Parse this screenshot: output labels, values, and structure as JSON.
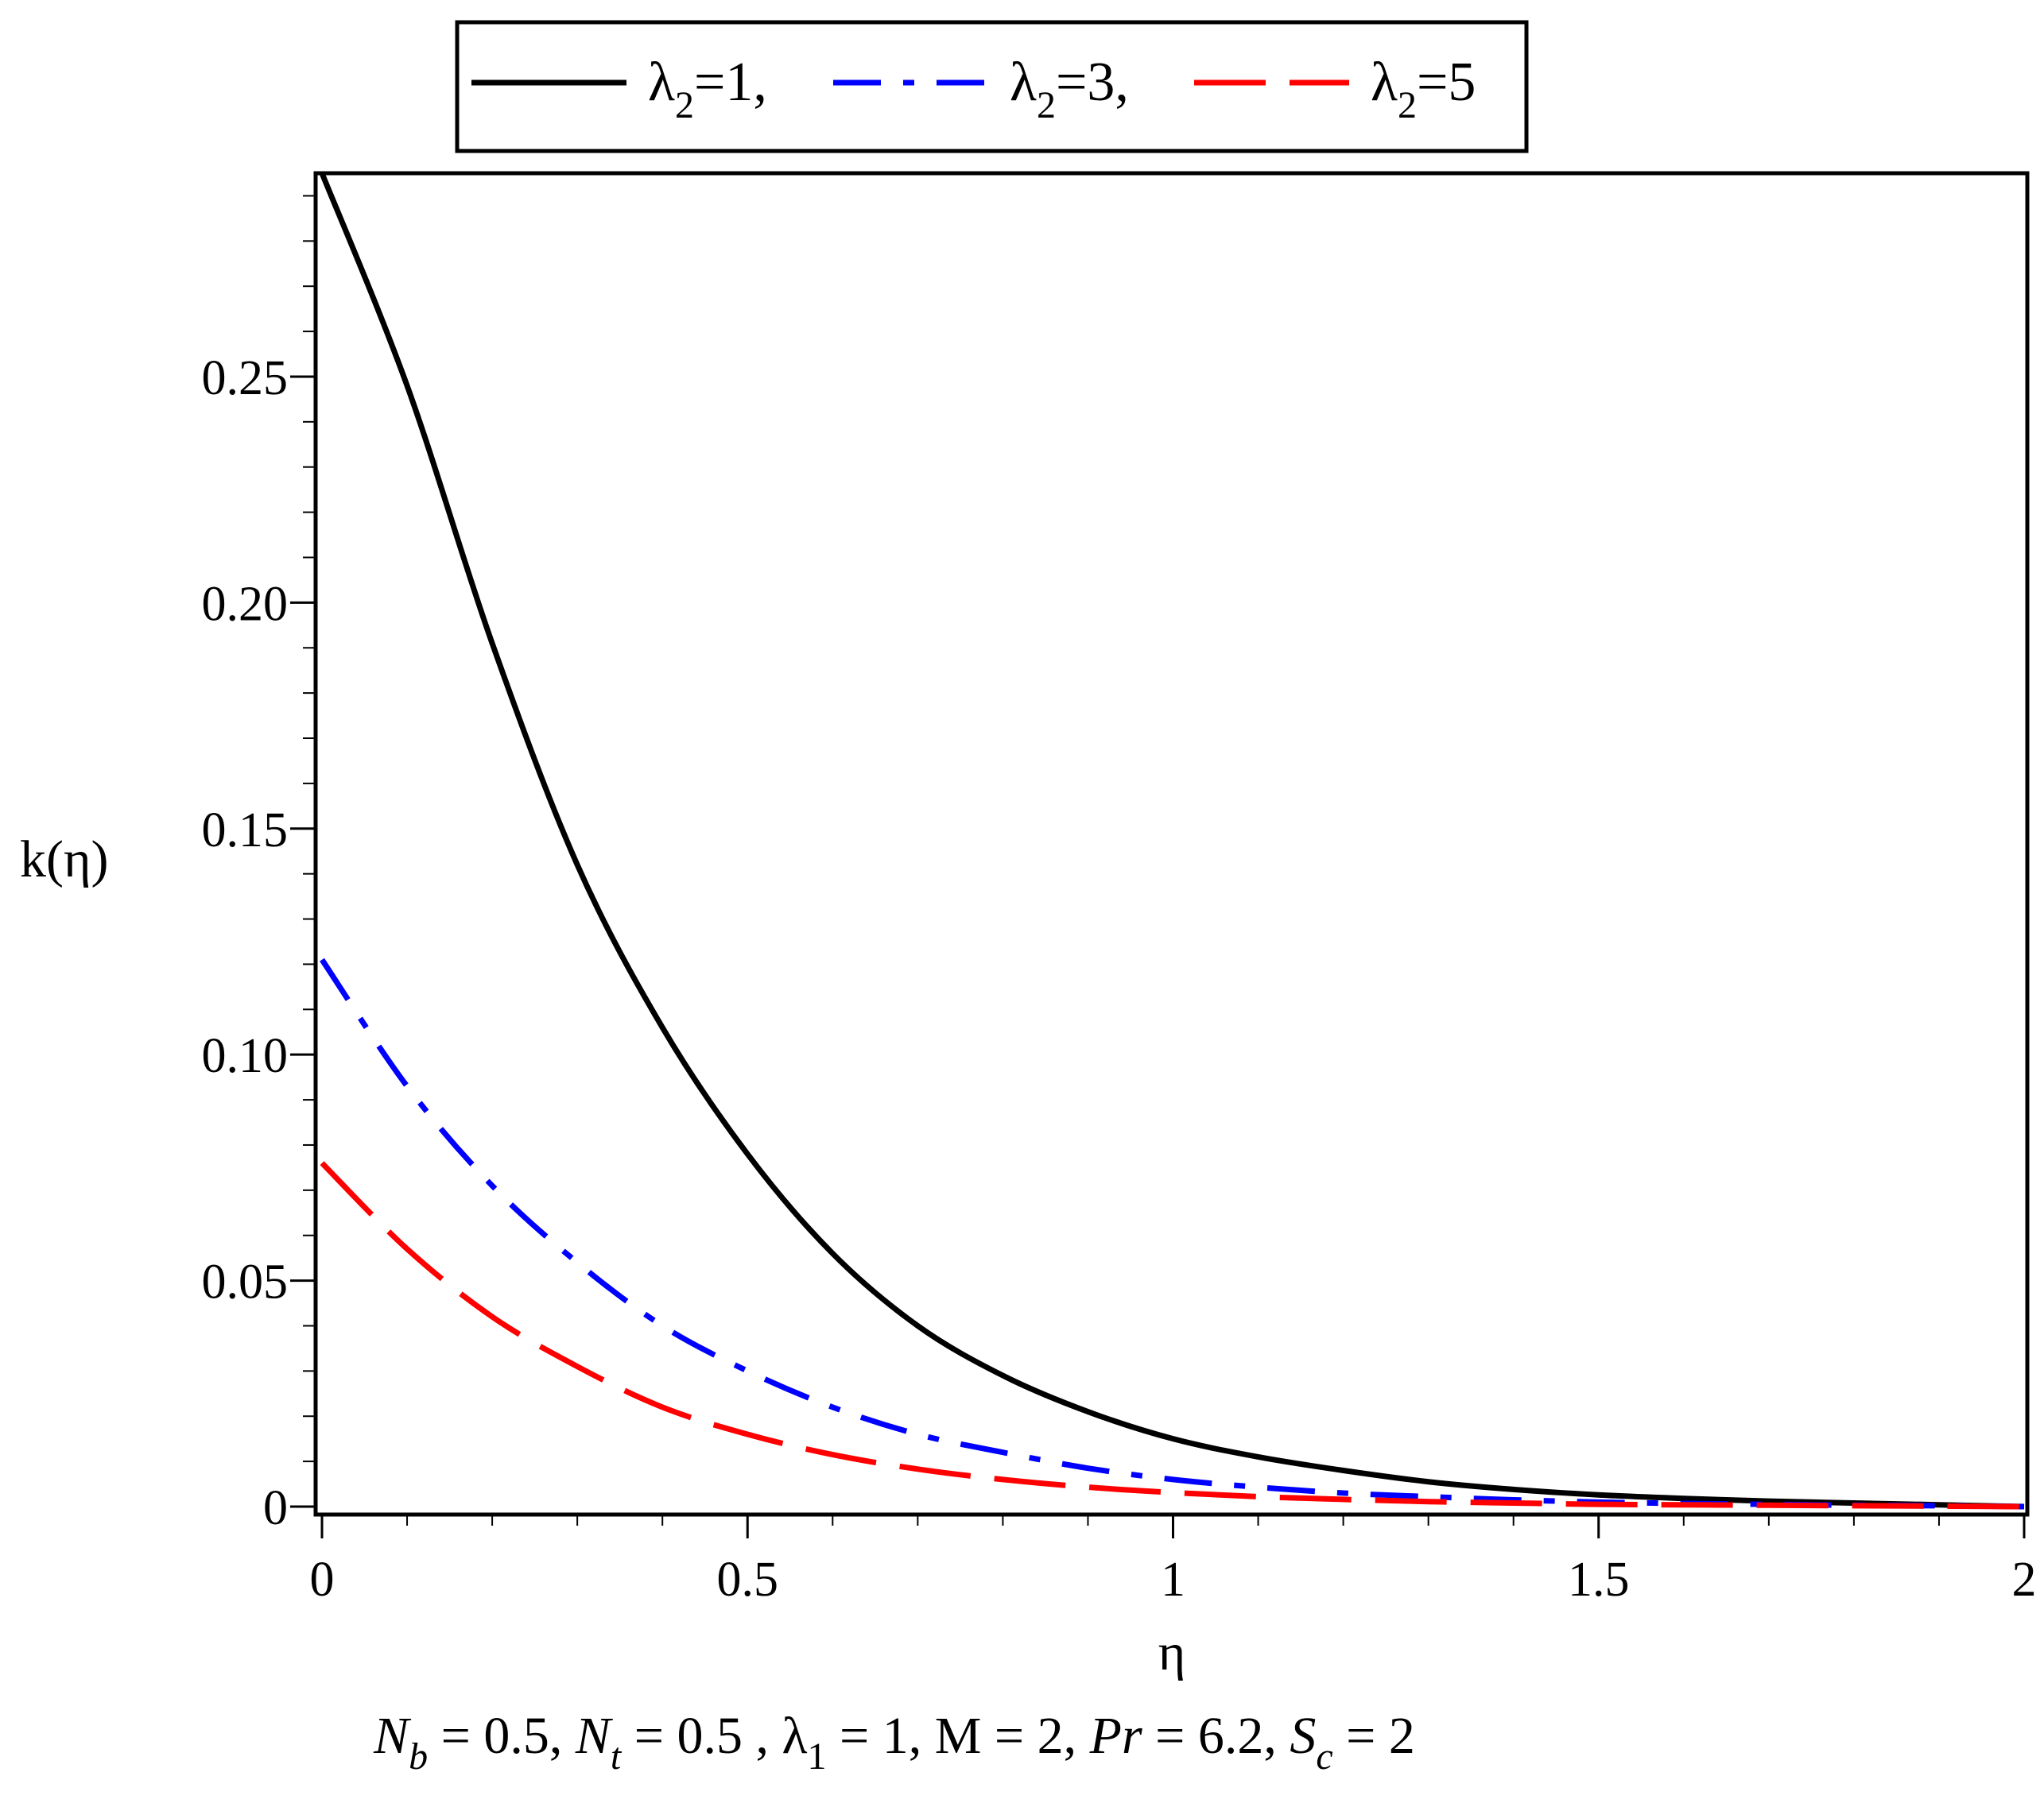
{
  "chart_data": {
    "type": "line",
    "xlabel": "η",
    "ylabel": "k(η)",
    "xlim": [
      0,
      2
    ],
    "ylim": [
      0,
      0.295
    ],
    "x_ticks": [
      {
        "value": 0,
        "label": "0"
      },
      {
        "value": 0.5,
        "label": "0.5"
      },
      {
        "value": 1,
        "label": "1"
      },
      {
        "value": 1.5,
        "label": "1.5"
      },
      {
        "value": 2,
        "label": "2"
      }
    ],
    "y_ticks": [
      {
        "value": 0,
        "label": "0"
      },
      {
        "value": 0.05,
        "label": "0.05"
      },
      {
        "value": 0.1,
        "label": "0.10"
      },
      {
        "value": 0.15,
        "label": "0.15"
      },
      {
        "value": 0.2,
        "label": "0.20"
      },
      {
        "value": 0.25,
        "label": "0.25"
      }
    ],
    "grid": false,
    "legend_position": "top",
    "series": [
      {
        "legend_base": "λ",
        "legend_sub": "2",
        "legend_rest": "=1,",
        "color": "#000000",
        "style": "solid",
        "x": [
          0,
          0.1,
          0.2,
          0.3,
          0.4,
          0.5,
          0.6,
          0.7,
          0.8,
          0.9,
          1.0,
          1.1,
          1.2,
          1.3,
          1.4,
          1.5,
          1.6,
          1.7,
          1.8,
          1.9,
          2.0
        ],
        "y": [
          0.295,
          0.248,
          0.191,
          0.142,
          0.106,
          0.078,
          0.056,
          0.04,
          0.029,
          0.021,
          0.015,
          0.011,
          0.008,
          0.0055,
          0.0038,
          0.0026,
          0.0018,
          0.0012,
          0.0008,
          0.0004,
          0.0
        ]
      },
      {
        "legend_base": "λ",
        "legend_sub": "2",
        "legend_rest": "=3,",
        "color": "#0000ff",
        "style": "dashdot",
        "x": [
          0,
          0.1,
          0.2,
          0.3,
          0.4,
          0.5,
          0.6,
          0.7,
          0.8,
          0.9,
          1.0,
          1.1,
          1.2,
          1.3,
          1.4,
          1.5,
          1.6,
          1.7,
          1.8,
          1.9,
          2.0
        ],
        "y": [
          0.121,
          0.093,
          0.071,
          0.054,
          0.04,
          0.03,
          0.022,
          0.016,
          0.012,
          0.0085,
          0.006,
          0.0043,
          0.003,
          0.0022,
          0.0015,
          0.001,
          0.0007,
          0.0005,
          0.0003,
          0.0002,
          0.0
        ]
      },
      {
        "legend_base": "λ",
        "legend_sub": "2",
        "legend_rest": "=5",
        "color": "#ff0000",
        "style": "dashed",
        "x": [
          0,
          0.1,
          0.2,
          0.3,
          0.4,
          0.5,
          0.6,
          0.7,
          0.8,
          0.9,
          1.0,
          1.1,
          1.2,
          1.3,
          1.4,
          1.5,
          1.6,
          1.7,
          1.8,
          1.9,
          2.0
        ],
        "y": [
          0.076,
          0.057,
          0.042,
          0.031,
          0.022,
          0.016,
          0.0115,
          0.0083,
          0.006,
          0.0043,
          0.0031,
          0.0022,
          0.0016,
          0.0011,
          0.0008,
          0.0005,
          0.0004,
          0.0003,
          0.0002,
          0.0001,
          0.0
        ]
      }
    ],
    "parameter_line": [
      {
        "t": "N",
        "i": true
      },
      {
        "t": "b",
        "i": true,
        "sub": true
      },
      {
        "t": " = 0.5, "
      },
      {
        "t": "N",
        "i": true
      },
      {
        "t": "t",
        "i": true,
        "sub": true
      },
      {
        "t": " = 0.5 , "
      },
      {
        "t": "λ"
      },
      {
        "t": "1",
        "sub": true
      },
      {
        "t": " = 1, M = 2, "
      },
      {
        "t": "Pr",
        "i": true
      },
      {
        "t": " = 6.2, "
      },
      {
        "t": "S",
        "i": true
      },
      {
        "t": "c",
        "i": true,
        "sub": true
      },
      {
        "t": " = 2"
      }
    ]
  }
}
